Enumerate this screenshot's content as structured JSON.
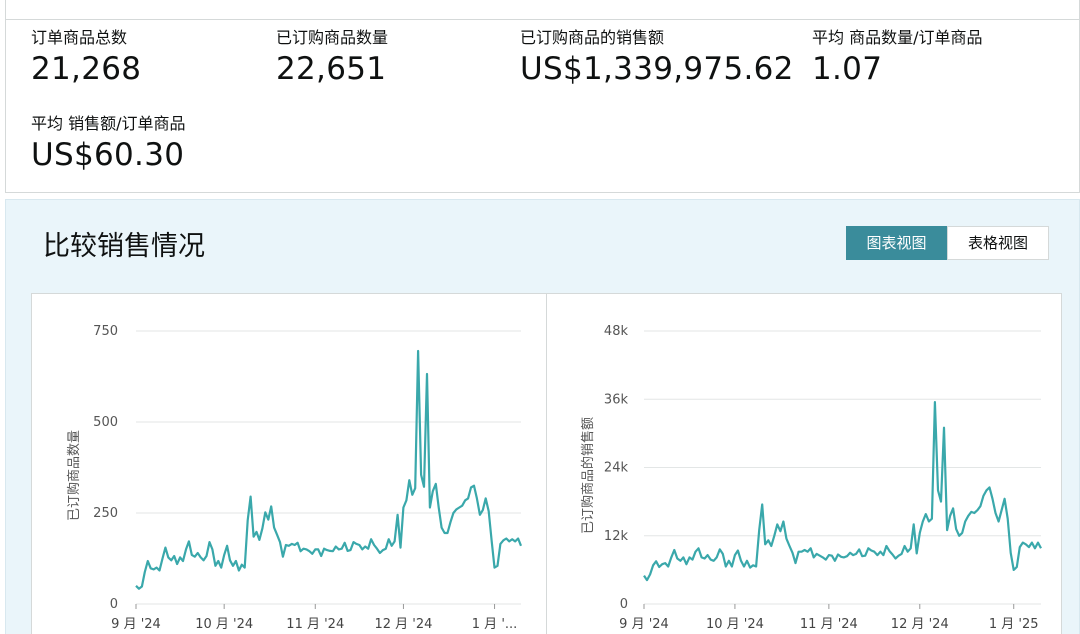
{
  "metrics": [
    {
      "label": "订单商品总数",
      "value": "21,268"
    },
    {
      "label": "已订购商品数量",
      "value": "22,651"
    },
    {
      "label": "已订购商品的销售额",
      "value": "US$1,339,975.62"
    },
    {
      "label": "平均 商品数量/订单商品",
      "value": "1.07"
    },
    {
      "label": "平均 销售额/订单商品",
      "value": "US$60.30"
    }
  ],
  "compare": {
    "title": "比较销售情况",
    "chart_view_label": "图表视图",
    "table_view_label": "表格视图"
  },
  "colors": {
    "accent": "#3a8c9b",
    "series": "#3aa8ab",
    "panel_bg": "#eaf5fa"
  },
  "chart_data": [
    {
      "type": "line",
      "ylabel": "已订购商品数量",
      "ylim": [
        0,
        750
      ],
      "yticks": [
        {
          "v": 0,
          "label": "0"
        },
        {
          "v": 250,
          "label": "250"
        },
        {
          "v": 500,
          "label": "500"
        },
        {
          "v": 750,
          "label": "750"
        }
      ],
      "xticks": [
        "9 月 '24",
        "10 月 '24",
        "11 月 '24",
        "12 月 '24",
        "1 月 '..."
      ],
      "xtick_idx": [
        0,
        30,
        61,
        91,
        122
      ],
      "grid": true,
      "series": [
        {
          "values": [
            50,
            42,
            48,
            88,
            118,
            98,
            95,
            100,
            92,
            125,
            155,
            128,
            120,
            132,
            110,
            128,
            118,
            150,
            172,
            135,
            130,
            140,
            128,
            120,
            132,
            170,
            150,
            105,
            118,
            100,
            135,
            160,
            120,
            105,
            118,
            92,
            108,
            100,
            230,
            295,
            185,
            198,
            176,
            208,
            252,
            232,
            268,
            210,
            190,
            170,
            130,
            162,
            160,
            165,
            162,
            168,
            145,
            152,
            150,
            145,
            138,
            150,
            150,
            132,
            152,
            148,
            146,
            145,
            158,
            150,
            152,
            168,
            146,
            148,
            170,
            165,
            162,
            150,
            158,
            152,
            178,
            162,
            152,
            140,
            148,
            152,
            178,
            160,
            172,
            245,
            155,
            265,
            285,
            340,
            300,
            318,
            695,
            355,
            322,
            632,
            265,
            310,
            330,
            265,
            210,
            195,
            195,
            225,
            250,
            260,
            265,
            270,
            285,
            290,
            320,
            325,
            290,
            245,
            258,
            290,
            255,
            175,
            100,
            105,
            165,
            175,
            180,
            172,
            178,
            172,
            180,
            160
          ]
        }
      ]
    },
    {
      "type": "line",
      "ylabel": "已订购商品的销售额",
      "ylim": [
        0,
        48000
      ],
      "yticks": [
        {
          "v": 0,
          "label": "0"
        },
        {
          "v": 12000,
          "label": "12k"
        },
        {
          "v": 24000,
          "label": "24k"
        },
        {
          "v": 36000,
          "label": "36k"
        },
        {
          "v": 48000,
          "label": "48k"
        }
      ],
      "xticks": [
        "9 月 '24",
        "10 月 '24",
        "11 月 '24",
        "12 月 '24",
        "1 月 '25"
      ],
      "xtick_idx": [
        0,
        30,
        61,
        91,
        122
      ],
      "grid": true,
      "series": [
        {
          "values": [
            5000,
            4200,
            5200,
            6800,
            7500,
            6500,
            7000,
            7200,
            6600,
            8200,
            9500,
            8000,
            7600,
            8200,
            7000,
            8200,
            7800,
            9200,
            9800,
            8200,
            8000,
            8600,
            7800,
            7600,
            8200,
            9600,
            8800,
            6600,
            7600,
            6600,
            8600,
            9400,
            7600,
            6600,
            7600,
            6400,
            6800,
            6600,
            13000,
            17500,
            10500,
            11200,
            10200,
            12000,
            14000,
            12800,
            14500,
            11500,
            10200,
            9000,
            7200,
            9200,
            9200,
            9500,
            9200,
            9800,
            8200,
            8800,
            8500,
            8200,
            7800,
            8600,
            8500,
            7600,
            8700,
            8300,
            8200,
            8400,
            9000,
            8600,
            8800,
            9600,
            8400,
            8500,
            9800,
            9400,
            9200,
            8600,
            9200,
            8600,
            10200,
            9300,
            8700,
            8000,
            8500,
            8800,
            10200,
            9200,
            9800,
            14000,
            8900,
            12500,
            14500,
            15800,
            14500,
            15000,
            35500,
            20000,
            18000,
            31000,
            13000,
            15500,
            16800,
            13200,
            12000,
            12500,
            14500,
            15500,
            16200,
            16000,
            16500,
            17200,
            19000,
            20000,
            20500,
            18500,
            16000,
            14500,
            16500,
            18500,
            15000,
            9000,
            6000,
            6500,
            10000,
            10800,
            10500,
            10000,
            10800,
            9800,
            10800,
            9800
          ]
        }
      ]
    }
  ]
}
